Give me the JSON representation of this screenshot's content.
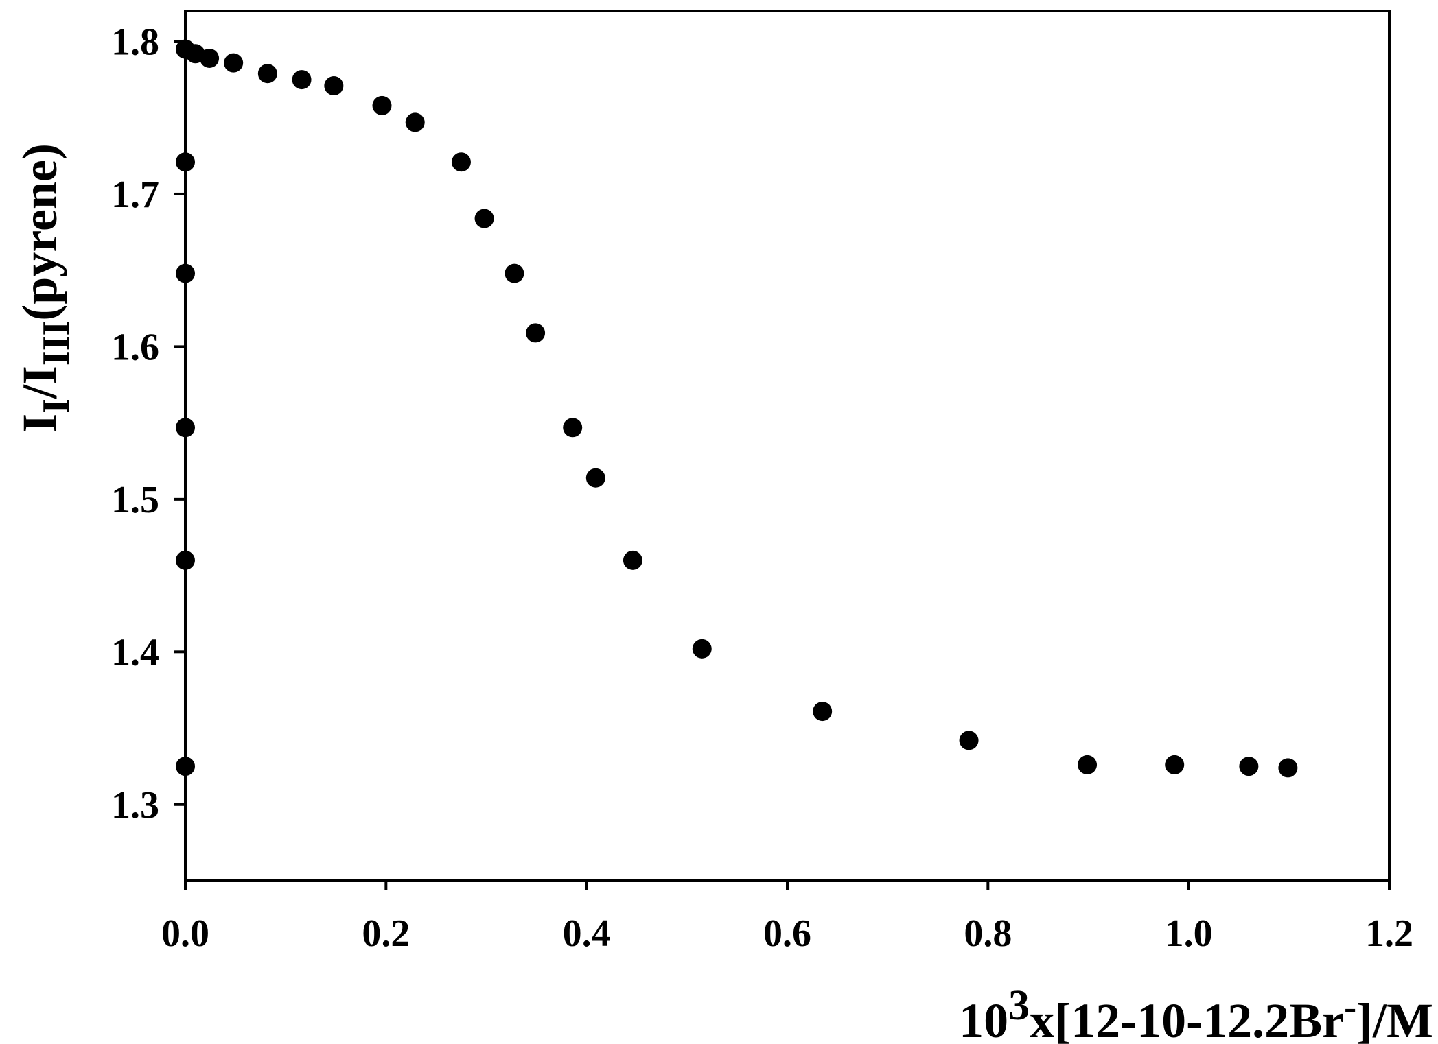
{
  "chart_data": {
    "type": "scatter",
    "xlabel": {
      "prefix": "10",
      "superscript": "3",
      "body": "x[12-10-12.2Br",
      "charge": "-",
      "suffix": "]/M"
    },
    "ylabel": {
      "I1": "I",
      "I1_sub": "I",
      "slash": "/I",
      "I3_sub": "III",
      "suffix": "(pyrene)"
    },
    "xlim": [
      0.0,
      1.2
    ],
    "ylim": [
      1.25,
      1.82
    ],
    "x_ticks": [
      0.0,
      0.2,
      0.4,
      0.6,
      0.8,
      1.0,
      1.2
    ],
    "x_tick_labels": [
      "0.0",
      "0.2",
      "0.4",
      "0.6",
      "0.8",
      "1.0",
      "1.2"
    ],
    "y_ticks": [
      1.3,
      1.4,
      1.5,
      1.6,
      1.7,
      1.8
    ],
    "y_tick_labels": [
      "1.3",
      "1.4",
      "1.5",
      "1.6",
      "1.7",
      "1.8"
    ],
    "grid": false,
    "marker_color": "#000000",
    "series": [
      {
        "x": [
          0.0,
          0.0,
          0.0,
          0.0,
          0.0,
          0.0,
          0.01,
          0.024,
          0.048,
          0.082,
          0.116,
          0.148,
          0.196,
          0.229,
          0.275,
          0.298,
          0.328,
          0.349,
          0.386,
          0.409,
          0.446,
          0.515,
          0.635,
          0.781,
          0.899,
          0.986,
          1.06,
          1.099
        ],
        "y": [
          1.795,
          1.721,
          1.648,
          1.547,
          1.46,
          1.325,
          1.792,
          1.789,
          1.786,
          1.779,
          1.775,
          1.771,
          1.758,
          1.747,
          1.721,
          1.684,
          1.648,
          1.609,
          1.547,
          1.514,
          1.46,
          1.402,
          1.361,
          1.342,
          1.326,
          1.326,
          1.325,
          1.324
        ]
      }
    ]
  }
}
